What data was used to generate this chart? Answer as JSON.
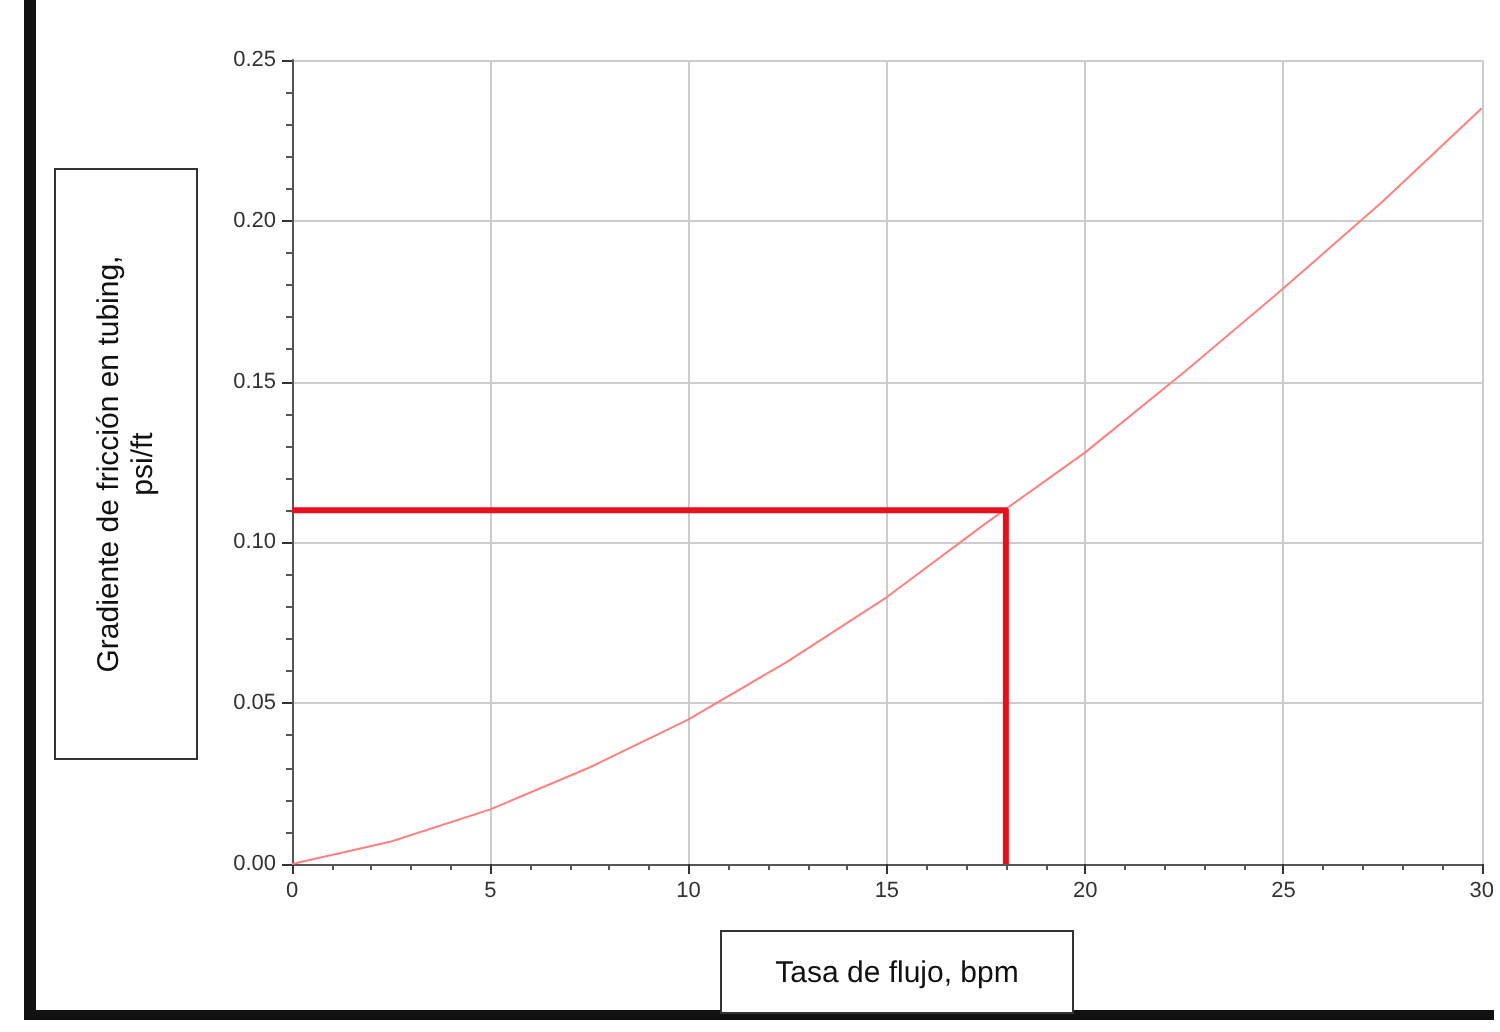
{
  "chart_data": {
    "type": "line",
    "xlabel": "Tasa de flujo, bpm",
    "ylabel": "Gradiente  de fricción en tubing,  psi/ft",
    "series": [
      {
        "x": [
          0,
          2.5,
          5,
          7.5,
          10,
          12.5,
          15,
          17.5,
          20,
          22.5,
          25,
          27.5,
          30
        ],
        "values": [
          0,
          0.007,
          0.017,
          0.03,
          0.045,
          0.063,
          0.083,
          0.106,
          0.128,
          0.153,
          0.179,
          0.206,
          0.235
        ],
        "color": "#ff8080"
      },
      {
        "x": [
          0,
          18,
          18
        ],
        "values": [
          0.11,
          0.11,
          0
        ],
        "color": "#e8101c"
      }
    ],
    "xlim": [
      0,
      30
    ],
    "xticks": [
      0,
      5,
      10,
      15,
      20,
      25,
      30
    ],
    "ylim": [
      0,
      0.25
    ],
    "yticks": [
      {
        "value": 0,
        "label": "0.00"
      },
      {
        "value": 0.05,
        "label": "0.05"
      },
      {
        "value": 0.1,
        "label": "0.10"
      },
      {
        "value": 0.15,
        "label": "0.15"
      },
      {
        "value": 0.2,
        "label": "0.20"
      },
      {
        "value": 0.25,
        "label": "0.25"
      }
    ],
    "grid": true,
    "marker": "none",
    "line_style": "solid"
  }
}
